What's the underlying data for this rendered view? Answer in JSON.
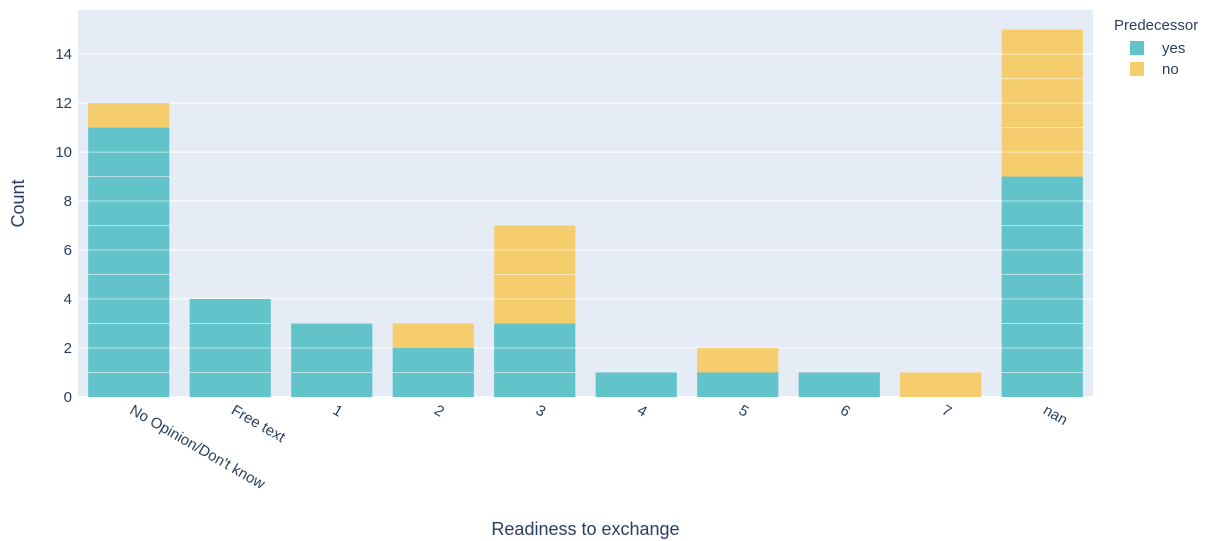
{
  "chart_data": {
    "type": "bar",
    "barmode": "stack",
    "categories": [
      "No Opinion/Don't know",
      "Free text",
      "1",
      "2",
      "3",
      "4",
      "5",
      "6",
      "7",
      "nan"
    ],
    "series": [
      {
        "name": "yes",
        "color": "#62c3cb",
        "values": [
          11,
          4,
          3,
          2,
          3,
          1,
          1,
          1,
          0,
          9
        ]
      },
      {
        "name": "no",
        "color": "#f5cd6d",
        "values": [
          1,
          0,
          0,
          1,
          4,
          0,
          1,
          0,
          1,
          6
        ]
      }
    ],
    "xlabel": "Readiness to exchange",
    "ylabel": "Count",
    "ylim": [
      0,
      15.8
    ],
    "yticks": [
      0,
      2,
      4,
      6,
      8,
      10,
      12,
      14
    ],
    "legend_title": "Predecessor",
    "legend_position": "top-right",
    "plot_background": "#e5ecf6",
    "grid": true
  }
}
